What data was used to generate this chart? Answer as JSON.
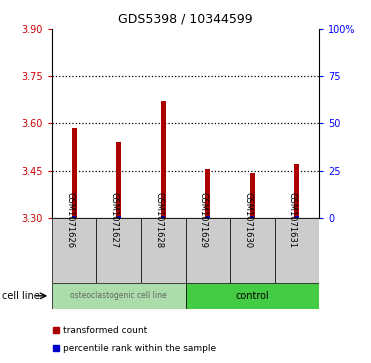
{
  "title": "GDS5398 / 10344599",
  "samples": [
    "GSM1071626",
    "GSM1071627",
    "GSM1071628",
    "GSM1071629",
    "GSM1071630",
    "GSM1071631"
  ],
  "bar_values": [
    3.585,
    3.54,
    3.67,
    3.455,
    3.443,
    3.47
  ],
  "ylim_left": [
    3.3,
    3.9
  ],
  "ylim_right": [
    0,
    100
  ],
  "yticks_left": [
    3.3,
    3.45,
    3.6,
    3.75,
    3.9
  ],
  "yticks_right": [
    0,
    25,
    50,
    75,
    100
  ],
  "ytick_right_labels": [
    "0",
    "25",
    "50",
    "75",
    "100%"
  ],
  "hlines": [
    3.75,
    3.6,
    3.45
  ],
  "bar_color": "#aa0000",
  "dot_color": "#0000cc",
  "bar_width": 0.12,
  "baseline": 3.3,
  "groups": [
    {
      "label": "osteoclastogenic cell line",
      "indices": [
        0,
        1,
        2
      ],
      "color": "#aaddaa",
      "label_color": "#666666"
    },
    {
      "label": "control",
      "indices": [
        3,
        4,
        5
      ],
      "color": "#44cc44",
      "label_color": "#000000"
    }
  ],
  "cell_line_label": "cell line",
  "legend": [
    {
      "color": "#aa0000",
      "label": "transformed count"
    },
    {
      "color": "#0000cc",
      "label": "percentile rank within the sample"
    }
  ],
  "box_color": "#cccccc",
  "box_edge_color": "#000000"
}
